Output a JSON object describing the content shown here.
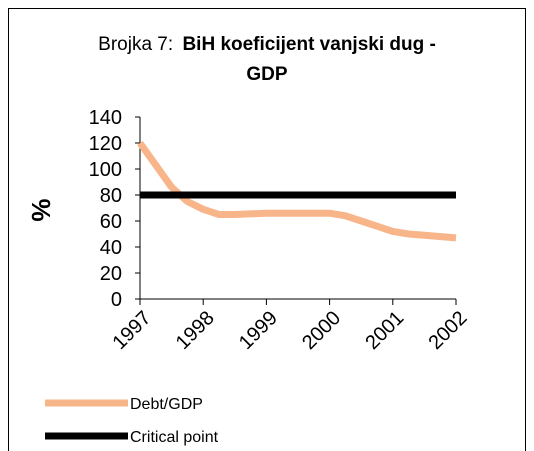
{
  "chart_data": {
    "type": "line",
    "title_lines": [
      "Brojka 7:",
      "BiH koeficijent vanjski dug -",
      "GDP"
    ],
    "y_label": "%",
    "x": [
      1997,
      1997.25,
      1997.5,
      1997.75,
      1998,
      1998.25,
      1998.5,
      1999,
      1999.5,
      2000,
      2000.25,
      2000.5,
      2000.75,
      2001,
      2001.25,
      2001.5,
      2002
    ],
    "xlim": [
      1997,
      2002
    ],
    "xticks": [
      1997,
      1998,
      1999,
      2000,
      2001,
      2002
    ],
    "ylim": [
      0,
      140
    ],
    "yticks": [
      0,
      20,
      40,
      60,
      80,
      100,
      120,
      140
    ],
    "series": [
      {
        "name": "Debt/GDP",
        "color": "#f9b58a",
        "values": [
          120,
          103,
          86,
          75,
          69,
          65,
          65,
          66,
          66,
          66,
          64,
          60,
          56,
          52,
          50,
          49,
          47
        ]
      },
      {
        "name": "Critical point",
        "color": "#000000",
        "values": [
          80,
          80,
          80,
          80,
          80,
          80,
          80,
          80,
          80,
          80,
          80,
          80,
          80,
          80,
          80,
          80,
          80
        ]
      }
    ]
  }
}
